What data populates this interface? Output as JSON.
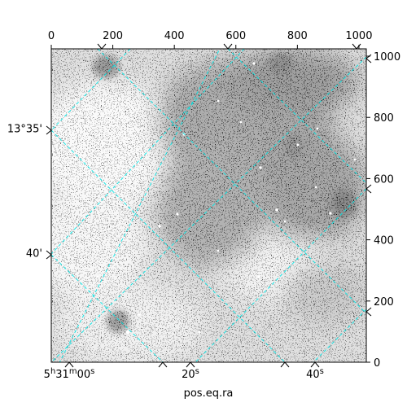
{
  "chart_data": {
    "type": "heatmap",
    "title": "",
    "xlabel": "pos.eq.ra",
    "ylabel": "",
    "colormap": "gray",
    "pixel_axes": {
      "x_range": [
        0,
        1024
      ],
      "y_range": [
        0,
        1024
      ],
      "top_ticks": [
        {
          "value": 0,
          "label": "0"
        },
        {
          "value": 200,
          "label": "200"
        },
        {
          "value": 400,
          "label": "400"
        },
        {
          "value": 600,
          "label": "600"
        },
        {
          "value": 800,
          "label": "800"
        },
        {
          "value": 1000,
          "label": "1000"
        }
      ],
      "right_ticks": [
        {
          "value": 0,
          "label": "0"
        },
        {
          "value": 200,
          "label": "200"
        },
        {
          "value": 400,
          "label": "400"
        },
        {
          "value": 600,
          "label": "600"
        },
        {
          "value": 800,
          "label": "800"
        },
        {
          "value": 1000,
          "label": "1000"
        }
      ]
    },
    "world_axes": {
      "ra_ticks": [
        {
          "label": "5h31m00s",
          "parts": [
            {
              "text": "5",
              "sup": false
            },
            {
              "text": "h",
              "sup": true
            },
            {
              "text": "31",
              "sup": false
            },
            {
              "text": "m",
              "sup": true
            },
            {
              "text": "00",
              "sup": false
            },
            {
              "text": "s",
              "sup": true
            }
          ]
        },
        {
          "label": "20s",
          "parts": [
            {
              "text": "20",
              "sup": false
            },
            {
              "text": "s",
              "sup": true
            }
          ]
        },
        {
          "label": "40s",
          "parts": [
            {
              "text": "40",
              "sup": false
            },
            {
              "text": "s",
              "sup": true
            }
          ]
        }
      ],
      "dec_ticks": [
        {
          "label": "13°35'"
        },
        {
          "label": "40'"
        }
      ]
    },
    "grid": true,
    "grid_color": "#00e5e5",
    "image_colors": {
      "low": "#ffffff",
      "high": "#000000"
    }
  }
}
